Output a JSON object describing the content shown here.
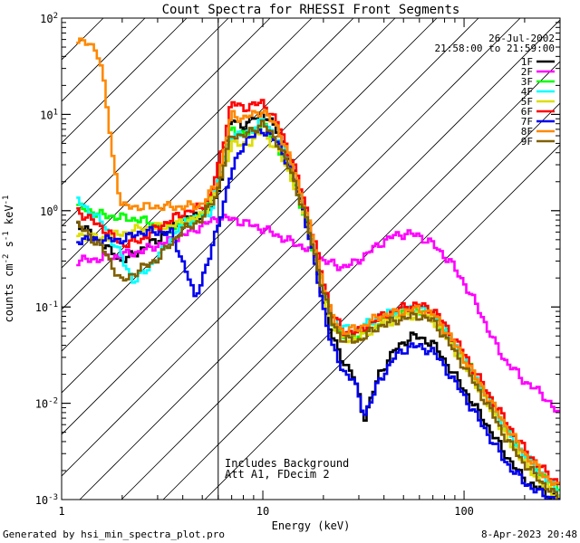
{
  "chart_data": {
    "type": "line",
    "title": "Count Spectra for RHESSI Front Segments",
    "xlabel": "Energy (keV)",
    "ylabel": "counts cm^-2 s^-1 keV^-1",
    "xscale": "log",
    "yscale": "log",
    "xlim": [
      1,
      300
    ],
    "ylim": [
      0.001,
      100
    ],
    "x_ticks": [
      {
        "value": 1,
        "label": "1"
      },
      {
        "value": 10,
        "label": "10"
      },
      {
        "value": 100,
        "label": "100"
      }
    ],
    "y_ticks": [
      {
        "value": 100,
        "label": "10",
        "exp": "2"
      },
      {
        "value": 10,
        "label": "10",
        "exp": "1"
      },
      {
        "value": 1,
        "label": "10",
        "exp": "0"
      },
      {
        "value": 0.1,
        "label": "10",
        "exp": "-1"
      },
      {
        "value": 0.01,
        "label": "10",
        "exp": "-2"
      },
      {
        "value": 0.001,
        "label": "10",
        "exp": "-3"
      }
    ],
    "date": "26-Jul-2002",
    "time_range": "21:58:00 to 21:59:00",
    "annotation_lines": [
      "Includes Background",
      "Att A1, FDecim 2"
    ],
    "hatch_region_max_energy": 6,
    "footer_left": "Generated by hsi_min_spectra_plot.pro",
    "footer_right": "8-Apr-2023 20:48",
    "series": [
      {
        "name": "1F",
        "color": "#000000",
        "offset": 0,
        "points": [
          [
            1.2,
            0.75
          ],
          [
            2,
            0.3
          ],
          [
            3,
            0.5
          ],
          [
            4,
            0.8
          ],
          [
            5.5,
            1.0
          ],
          [
            6,
            1.5
          ],
          [
            7,
            9
          ],
          [
            8,
            7.5
          ],
          [
            10,
            10.5
          ],
          [
            12,
            6.5
          ],
          [
            14,
            3
          ],
          [
            16,
            1
          ],
          [
            18,
            0.35
          ],
          [
            20,
            0.12
          ],
          [
            22,
            0.05
          ],
          [
            25,
            0.028
          ],
          [
            28,
            0.02
          ],
          [
            30,
            0.012
          ],
          [
            32,
            0.007
          ],
          [
            34,
            0.01
          ],
          [
            38,
            0.02
          ],
          [
            45,
            0.035
          ],
          [
            55,
            0.05
          ],
          [
            60,
            0.048
          ],
          [
            70,
            0.042
          ],
          [
            80,
            0.028
          ],
          [
            100,
            0.014
          ],
          [
            130,
            0.006
          ],
          [
            160,
            0.003
          ],
          [
            200,
            0.0016
          ],
          [
            250,
            0.0012
          ],
          [
            300,
            0.001
          ]
        ]
      },
      {
        "name": "2F",
        "color": "#ff00ff",
        "offset": 0,
        "points": [
          [
            1.2,
            0.3
          ],
          [
            1.8,
            0.33
          ],
          [
            2.5,
            0.38
          ],
          [
            4,
            0.55
          ],
          [
            6,
            0.85
          ],
          [
            7,
            0.82
          ],
          [
            9,
            0.7
          ],
          [
            11,
            0.6
          ],
          [
            13,
            0.5
          ],
          [
            16,
            0.42
          ],
          [
            18,
            0.35
          ],
          [
            20,
            0.31
          ],
          [
            22,
            0.28
          ],
          [
            25,
            0.26
          ],
          [
            28,
            0.28
          ],
          [
            32,
            0.34
          ],
          [
            38,
            0.45
          ],
          [
            45,
            0.55
          ],
          [
            52,
            0.58
          ],
          [
            60,
            0.55
          ],
          [
            70,
            0.45
          ],
          [
            85,
            0.3
          ],
          [
            100,
            0.18
          ],
          [
            120,
            0.09
          ],
          [
            140,
            0.045
          ],
          [
            160,
            0.028
          ],
          [
            200,
            0.017
          ],
          [
            250,
            0.012
          ],
          [
            290,
            0.008
          ],
          [
            300,
            0.0075
          ]
        ]
      },
      {
        "name": "3F",
        "color": "#00ff00",
        "offset": 0,
        "points": [
          [
            1.2,
            1.1
          ],
          [
            1.6,
            0.9
          ],
          [
            2.5,
            0.8
          ],
          [
            3.5,
            0.65
          ],
          [
            5,
            0.9
          ],
          [
            6,
            2
          ],
          [
            7,
            7.5
          ],
          [
            8,
            6
          ],
          [
            10,
            8
          ],
          [
            12,
            4.5
          ],
          [
            14,
            2.2
          ],
          [
            16,
            0.9
          ],
          [
            18,
            0.35
          ],
          [
            20,
            0.14
          ],
          [
            22,
            0.07
          ],
          [
            25,
            0.05
          ],
          [
            30,
            0.05
          ],
          [
            38,
            0.07
          ],
          [
            50,
            0.09
          ],
          [
            60,
            0.095
          ],
          [
            70,
            0.085
          ],
          [
            80,
            0.06
          ],
          [
            100,
            0.03
          ],
          [
            130,
            0.012
          ],
          [
            160,
            0.006
          ],
          [
            200,
            0.003
          ],
          [
            250,
            0.0018
          ],
          [
            300,
            0.0012
          ]
        ]
      },
      {
        "name": "4F",
        "color": "#00ffff",
        "offset": 0.03,
        "points": [
          [
            1.2,
            1.2
          ],
          [
            1.6,
            0.7
          ],
          [
            2,
            0.3
          ],
          [
            2.3,
            0.17
          ],
          [
            3,
            0.3
          ],
          [
            4,
            0.7
          ],
          [
            5.5,
            0.9
          ],
          [
            6,
            1.8
          ],
          [
            7,
            6
          ],
          [
            8,
            5.5
          ],
          [
            10,
            8
          ],
          [
            12,
            5
          ],
          [
            14,
            2.5
          ],
          [
            16,
            1
          ],
          [
            18,
            0.4
          ],
          [
            20,
            0.15
          ],
          [
            22,
            0.08
          ],
          [
            25,
            0.055
          ],
          [
            30,
            0.055
          ],
          [
            38,
            0.075
          ],
          [
            50,
            0.09
          ],
          [
            60,
            0.09
          ],
          [
            70,
            0.08
          ],
          [
            80,
            0.055
          ],
          [
            100,
            0.028
          ],
          [
            130,
            0.011
          ],
          [
            160,
            0.005
          ],
          [
            200,
            0.0027
          ],
          [
            250,
            0.0016
          ],
          [
            300,
            0.0011
          ]
        ]
      },
      {
        "name": "5F",
        "color": "#dddd00",
        "offset": -0.03,
        "points": [
          [
            1.2,
            0.6
          ],
          [
            1.6,
            0.55
          ],
          [
            2.5,
            0.7
          ],
          [
            3.5,
            0.75
          ],
          [
            5,
            0.95
          ],
          [
            6,
            1.8
          ],
          [
            7,
            5.5
          ],
          [
            8,
            5
          ],
          [
            10,
            7
          ],
          [
            12,
            4.5
          ],
          [
            14,
            2.3
          ],
          [
            16,
            1
          ],
          [
            18,
            0.4
          ],
          [
            20,
            0.15
          ],
          [
            22,
            0.075
          ],
          [
            25,
            0.05
          ],
          [
            30,
            0.05
          ],
          [
            38,
            0.07
          ],
          [
            50,
            0.085
          ],
          [
            60,
            0.09
          ],
          [
            70,
            0.08
          ],
          [
            80,
            0.055
          ],
          [
            100,
            0.028
          ],
          [
            130,
            0.011
          ],
          [
            160,
            0.005
          ],
          [
            200,
            0.0026
          ],
          [
            250,
            0.0015
          ],
          [
            300,
            0.0011
          ]
        ]
      },
      {
        "name": "6F",
        "color": "#ff0000",
        "offset": 0.045,
        "points": [
          [
            1.2,
            0.9
          ],
          [
            1.6,
            0.6
          ],
          [
            2,
            0.4
          ],
          [
            2.5,
            0.45
          ],
          [
            3,
            0.6
          ],
          [
            4,
            0.85
          ],
          [
            5,
            1
          ],
          [
            5.5,
            1.3
          ],
          [
            6,
            2.5
          ],
          [
            7,
            12
          ],
          [
            8,
            10.5
          ],
          [
            10,
            12
          ],
          [
            12,
            7
          ],
          [
            14,
            3
          ],
          [
            16,
            1.2
          ],
          [
            18,
            0.45
          ],
          [
            20,
            0.17
          ],
          [
            22,
            0.08
          ],
          [
            25,
            0.05
          ],
          [
            30,
            0.05
          ],
          [
            38,
            0.07
          ],
          [
            50,
            0.09
          ],
          [
            60,
            0.095
          ],
          [
            70,
            0.085
          ],
          [
            80,
            0.06
          ],
          [
            100,
            0.03
          ],
          [
            130,
            0.012
          ],
          [
            160,
            0.006
          ],
          [
            200,
            0.003
          ],
          [
            250,
            0.0018
          ],
          [
            300,
            0.0013
          ]
        ]
      },
      {
        "name": "7F",
        "color": "#0000ee",
        "offset": 0,
        "points": [
          [
            1.2,
            0.5
          ],
          [
            2,
            0.5
          ],
          [
            2.5,
            0.6
          ],
          [
            3.5,
            0.6
          ],
          [
            4,
            0.3
          ],
          [
            4.3,
            0.2
          ],
          [
            4.6,
            0.12
          ],
          [
            5,
            0.2
          ],
          [
            5.5,
            0.35
          ],
          [
            6,
            0.7
          ],
          [
            7,
            2.5
          ],
          [
            8,
            5
          ],
          [
            10,
            7
          ],
          [
            12,
            5
          ],
          [
            14,
            2.5
          ],
          [
            16,
            1
          ],
          [
            18,
            0.3
          ],
          [
            20,
            0.1
          ],
          [
            22,
            0.04
          ],
          [
            25,
            0.022
          ],
          [
            28,
            0.018
          ],
          [
            30,
            0.012
          ],
          [
            32,
            0.0075
          ],
          [
            34,
            0.01
          ],
          [
            38,
            0.017
          ],
          [
            45,
            0.03
          ],
          [
            55,
            0.04
          ],
          [
            60,
            0.038
          ],
          [
            70,
            0.035
          ],
          [
            80,
            0.024
          ],
          [
            100,
            0.012
          ],
          [
            130,
            0.005
          ],
          [
            160,
            0.0025
          ],
          [
            200,
            0.0015
          ],
          [
            250,
            0.0011
          ],
          [
            300,
            0.001
          ]
        ]
      },
      {
        "name": "8F",
        "color": "#ff8800",
        "offset": 0,
        "points": [
          [
            1.2,
            60
          ],
          [
            1.5,
            48
          ],
          [
            1.6,
            27
          ],
          [
            1.7,
            10
          ],
          [
            1.8,
            3.5
          ],
          [
            2,
            1.1
          ],
          [
            2.5,
            1.1
          ],
          [
            3,
            1.1
          ],
          [
            4,
            1.1
          ],
          [
            5,
            1.15
          ],
          [
            6,
            2
          ],
          [
            7,
            10
          ],
          [
            8,
            9
          ],
          [
            10,
            11
          ],
          [
            12,
            7
          ],
          [
            14,
            3
          ],
          [
            16,
            1.2
          ],
          [
            18,
            0.45
          ],
          [
            20,
            0.17
          ],
          [
            22,
            0.08
          ],
          [
            25,
            0.055
          ],
          [
            30,
            0.06
          ],
          [
            38,
            0.08
          ],
          [
            50,
            0.09
          ],
          [
            60,
            0.095
          ],
          [
            70,
            0.085
          ],
          [
            80,
            0.06
          ],
          [
            100,
            0.03
          ],
          [
            130,
            0.012
          ],
          [
            160,
            0.006
          ],
          [
            200,
            0.003
          ],
          [
            250,
            0.0018
          ],
          [
            300,
            0.0013
          ]
        ]
      },
      {
        "name": "9F",
        "color": "#806000",
        "offset": -0.045,
        "points": [
          [
            1.2,
            0.8
          ],
          [
            1.6,
            0.45
          ],
          [
            2,
            0.2
          ],
          [
            2.3,
            0.25
          ],
          [
            3,
            0.35
          ],
          [
            4,
            0.7
          ],
          [
            5,
            0.9
          ],
          [
            6,
            1.8
          ],
          [
            7,
            7
          ],
          [
            8,
            6.5
          ],
          [
            10,
            9
          ],
          [
            12,
            5.5
          ],
          [
            14,
            2.6
          ],
          [
            16,
            1.1
          ],
          [
            18,
            0.42
          ],
          [
            20,
            0.16
          ],
          [
            22,
            0.08
          ],
          [
            25,
            0.05
          ],
          [
            30,
            0.05
          ],
          [
            38,
            0.07
          ],
          [
            50,
            0.085
          ],
          [
            60,
            0.09
          ],
          [
            70,
            0.08
          ],
          [
            80,
            0.055
          ],
          [
            100,
            0.027
          ],
          [
            130,
            0.011
          ],
          [
            160,
            0.005
          ],
          [
            200,
            0.0026
          ],
          [
            250,
            0.0016
          ],
          [
            300,
            0.0011
          ]
        ]
      }
    ]
  }
}
